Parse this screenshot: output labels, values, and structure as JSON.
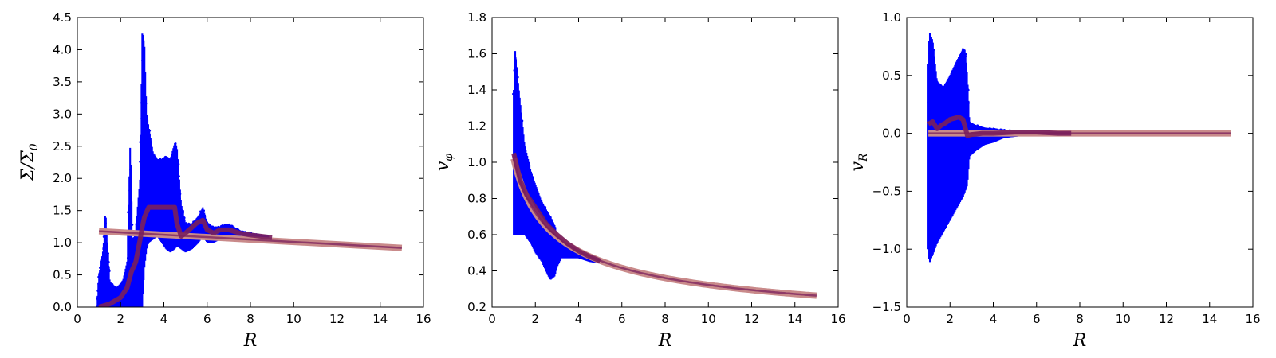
{
  "chart_data": [
    {
      "type": "scatter",
      "xlabel": "R",
      "ylabel": "Σ/Σ0",
      "xlim": [
        0,
        16
      ],
      "ylim": [
        0.0,
        4.5
      ],
      "xticks": [
        "0",
        "2",
        "4",
        "6",
        "8",
        "10",
        "12",
        "14",
        "16"
      ],
      "yticks": [
        "0.0",
        "0.5",
        "1.0",
        "1.5",
        "2.0",
        "2.5",
        "3.0",
        "3.5",
        "4.0",
        "4.5"
      ],
      "grid": false,
      "colors": {
        "scatter": "#0000ff",
        "mean": "#7a1f5c",
        "model": "#c98a8a"
      },
      "scatter_envelope": {
        "x": [
          0.9,
          1.0,
          1.2,
          1.3,
          1.5,
          1.8,
          2.1,
          2.3,
          2.45,
          2.55,
          2.7,
          2.9,
          3.0,
          3.1,
          3.2,
          3.3,
          3.5,
          3.7,
          3.9,
          4.1,
          4.3,
          4.5,
          4.6,
          4.8,
          5.0,
          5.3,
          5.6,
          5.8,
          6.0,
          6.3,
          6.6,
          6.9,
          7.2,
          7.6,
          8.0,
          8.4,
          8.8
        ],
        "ymin": [
          0.0,
          0.0,
          0.0,
          0.0,
          0.0,
          0.0,
          0.0,
          0.0,
          0.0,
          0.0,
          0.0,
          0.0,
          0.0,
          0.6,
          0.9,
          1.0,
          1.05,
          1.1,
          1.0,
          0.9,
          0.85,
          0.9,
          0.95,
          0.9,
          0.85,
          0.9,
          1.0,
          1.1,
          1.0,
          1.0,
          1.05,
          1.1,
          1.05,
          1.05,
          1.05,
          1.05,
          1.05
        ],
        "ymax": [
          0.0,
          0.5,
          0.9,
          1.5,
          0.4,
          0.3,
          0.4,
          0.7,
          2.6,
          1.0,
          1.2,
          2.0,
          4.25,
          4.1,
          3.0,
          2.8,
          2.4,
          2.3,
          2.3,
          2.35,
          2.3,
          2.55,
          2.5,
          1.6,
          1.3,
          1.3,
          1.4,
          1.55,
          1.3,
          1.25,
          1.25,
          1.3,
          1.25,
          1.18,
          1.15,
          1.12,
          1.1
        ]
      },
      "series": [
        {
          "name": "",
          "x": [
            1.0,
            1.5,
            2.0,
            2.3,
            2.5,
            2.7,
            2.9,
            3.0,
            3.1,
            3.3,
            3.5,
            4.0,
            4.5,
            4.6,
            4.8,
            5.0,
            5.5,
            5.8,
            6.0,
            6.3,
            6.6,
            7.0,
            7.5,
            8.0,
            8.5,
            9.0
          ],
          "y": [
            0.0,
            0.05,
            0.15,
            0.3,
            0.55,
            0.7,
            1.05,
            1.25,
            1.4,
            1.55,
            1.55,
            1.55,
            1.55,
            1.3,
            1.1,
            1.15,
            1.3,
            1.35,
            1.2,
            1.15,
            1.2,
            1.2,
            1.15,
            1.12,
            1.1,
            1.08
          ]
        },
        {
          "name": "",
          "x": [
            1.0,
            15.0
          ],
          "y": [
            1.18,
            0.92
          ]
        }
      ]
    },
    {
      "type": "scatter",
      "xlabel": "R",
      "ylabel": "vφ",
      "xlim": [
        0,
        16
      ],
      "ylim": [
        0.2,
        1.8
      ],
      "xticks": [
        "0",
        "2",
        "4",
        "6",
        "8",
        "10",
        "12",
        "14",
        "16"
      ],
      "yticks": [
        "0.2",
        "0.4",
        "0.6",
        "0.8",
        "1.0",
        "1.2",
        "1.4",
        "1.6",
        "1.8"
      ],
      "grid": false,
      "colors": {
        "scatter": "#0000ff",
        "mean": "#7a1f5c",
        "model": "#c98a8a"
      },
      "scatter_envelope": {
        "x": [
          1.0,
          1.05,
          1.2,
          1.5,
          1.8,
          2.0,
          2.3,
          2.6,
          2.7,
          2.9,
          3.0,
          3.2,
          3.5,
          4.0,
          4.5,
          5.0
        ],
        "ymin": [
          0.6,
          0.6,
          0.6,
          0.6,
          0.55,
          0.5,
          0.45,
          0.37,
          0.35,
          0.37,
          0.42,
          0.47,
          0.47,
          0.47,
          0.45,
          0.44
        ],
        "ymax": [
          1.4,
          1.64,
          1.45,
          1.1,
          0.95,
          0.88,
          0.78,
          0.72,
          0.7,
          0.65,
          0.6,
          0.57,
          0.55,
          0.52,
          0.49,
          0.46
        ]
      },
      "series": [
        {
          "name": "",
          "x": [
            1.0,
            1.3,
            1.6,
            2.0,
            2.5,
            3.0,
            3.5,
            4.0,
            4.5,
            5.0
          ],
          "y": [
            1.05,
            0.9,
            0.82,
            0.75,
            0.66,
            0.6,
            0.55,
            0.51,
            0.48,
            0.455
          ]
        },
        {
          "name": "",
          "x": [
            1.0,
            15.0
          ],
          "y": [
            1.02,
            0.26
          ],
          "form": "power",
          "exponent": -0.5
        }
      ]
    },
    {
      "type": "scatter",
      "xlabel": "R",
      "ylabel": "vR",
      "xlim": [
        0,
        16
      ],
      "ylim": [
        -1.5,
        1.0
      ],
      "xticks": [
        "0",
        "2",
        "4",
        "6",
        "8",
        "10",
        "12",
        "14",
        "16"
      ],
      "yticks": [
        "−1.5",
        "−1.0",
        "−0.5",
        "0.0",
        "0.5",
        "1.0"
      ],
      "grid": false,
      "colors": {
        "scatter": "#0000ff",
        "mean": "#7a1f5c",
        "model": "#c98a8a"
      },
      "scatter_envelope": {
        "x": [
          1.0,
          1.05,
          1.2,
          1.4,
          1.7,
          2.0,
          2.3,
          2.6,
          2.7,
          2.8,
          2.9,
          3.2,
          3.6,
          4.0,
          4.5,
          5.0,
          5.5,
          6.0,
          7.0,
          7.6
        ],
        "ymin": [
          -1.0,
          -1.12,
          -1.05,
          -0.95,
          -0.85,
          -0.75,
          -0.65,
          -0.55,
          -0.5,
          -0.45,
          -0.2,
          -0.15,
          -0.1,
          -0.08,
          -0.04,
          -0.03,
          -0.02,
          -0.01,
          -0.01,
          -0.005
        ],
        "ymax": [
          0.6,
          0.88,
          0.8,
          0.45,
          0.4,
          0.5,
          0.62,
          0.73,
          0.72,
          0.5,
          0.1,
          0.07,
          0.05,
          0.04,
          0.03,
          0.02,
          0.015,
          0.01,
          0.01,
          0.005
        ]
      },
      "series": [
        {
          "name": "",
          "x": [
            1.0,
            1.2,
            1.4,
            1.6,
            1.8,
            2.0,
            2.2,
            2.4,
            2.6,
            2.8,
            3.0,
            3.5,
            4.0,
            5.0,
            6.0,
            7.0,
            7.6
          ],
          "y": [
            0.08,
            0.1,
            0.04,
            0.07,
            0.09,
            0.12,
            0.13,
            0.14,
            0.12,
            -0.02,
            -0.01,
            0.0,
            0.0,
            0.01,
            0.01,
            0.0,
            0.0
          ]
        },
        {
          "name": "",
          "x": [
            1.0,
            15.0
          ],
          "y": [
            0.0,
            0.0
          ]
        }
      ]
    }
  ]
}
